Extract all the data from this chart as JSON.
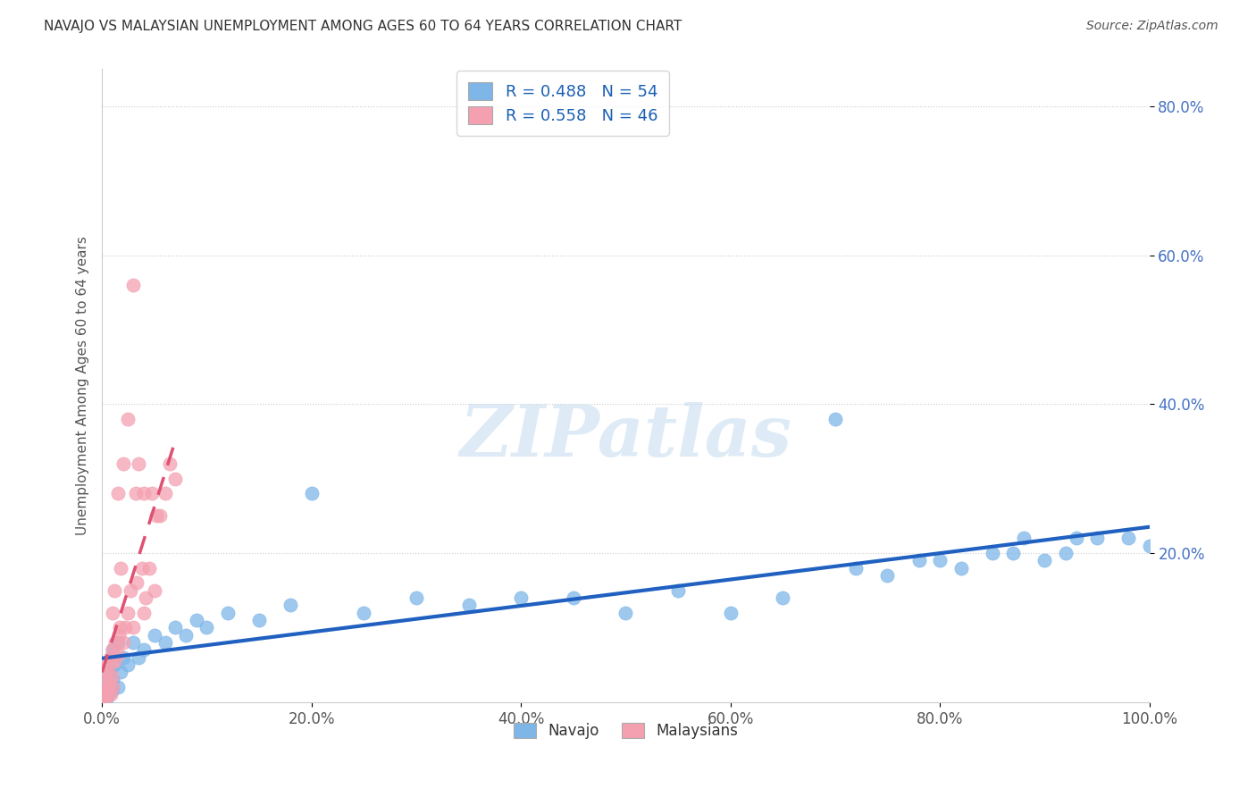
{
  "title": "NAVAJO VS MALAYSIAN UNEMPLOYMENT AMONG AGES 60 TO 64 YEARS CORRELATION CHART",
  "source": "Source: ZipAtlas.com",
  "ylabel": "Unemployment Among Ages 60 to 64 years",
  "xlim": [
    0.0,
    1.0
  ],
  "ylim": [
    0.0,
    0.85
  ],
  "xticks": [
    0.0,
    0.2,
    0.4,
    0.6,
    0.8,
    1.0
  ],
  "xtick_labels": [
    "0.0%",
    "20.0%",
    "40.0%",
    "60.0%",
    "80.0%",
    "100.0%"
  ],
  "yticks": [
    0.2,
    0.4,
    0.6,
    0.8
  ],
  "ytick_labels": [
    "20.0%",
    "40.0%",
    "60.0%",
    "80.0%"
  ],
  "navajo_R": 0.488,
  "navajo_N": 54,
  "malaysian_R": 0.558,
  "malaysian_N": 46,
  "navajo_color": "#7EB6E8",
  "malaysian_color": "#F4A0B0",
  "navajo_line_color": "#2060C0",
  "malaysian_line_color": "#E05070",
  "navajo_scatter_x": [
    0.002,
    0.003,
    0.004,
    0.005,
    0.006,
    0.007,
    0.008,
    0.008,
    0.009,
    0.01,
    0.01,
    0.012,
    0.015,
    0.015,
    0.018,
    0.02,
    0.025,
    0.03,
    0.035,
    0.04,
    0.05,
    0.06,
    0.07,
    0.08,
    0.09,
    0.1,
    0.12,
    0.15,
    0.18,
    0.2,
    0.25,
    0.3,
    0.35,
    0.4,
    0.45,
    0.5,
    0.55,
    0.6,
    0.65,
    0.7,
    0.72,
    0.75,
    0.78,
    0.8,
    0.82,
    0.85,
    0.87,
    0.88,
    0.9,
    0.92,
    0.93,
    0.95,
    0.98,
    1.0
  ],
  "navajo_scatter_y": [
    0.01,
    0.02,
    0.005,
    0.03,
    0.01,
    0.04,
    0.02,
    0.06,
    0.015,
    0.03,
    0.07,
    0.05,
    0.02,
    0.08,
    0.04,
    0.06,
    0.05,
    0.08,
    0.06,
    0.07,
    0.09,
    0.08,
    0.1,
    0.09,
    0.11,
    0.1,
    0.12,
    0.11,
    0.13,
    0.28,
    0.12,
    0.14,
    0.13,
    0.14,
    0.14,
    0.12,
    0.15,
    0.12,
    0.14,
    0.38,
    0.18,
    0.17,
    0.19,
    0.19,
    0.18,
    0.2,
    0.2,
    0.22,
    0.19,
    0.2,
    0.22,
    0.22,
    0.22,
    0.21
  ],
  "malaysian_scatter_x": [
    0.002,
    0.003,
    0.004,
    0.004,
    0.005,
    0.005,
    0.006,
    0.006,
    0.007,
    0.008,
    0.008,
    0.009,
    0.01,
    0.01,
    0.01,
    0.012,
    0.012,
    0.013,
    0.015,
    0.015,
    0.016,
    0.017,
    0.018,
    0.02,
    0.02,
    0.022,
    0.025,
    0.025,
    0.027,
    0.03,
    0.03,
    0.032,
    0.033,
    0.035,
    0.038,
    0.04,
    0.04,
    0.042,
    0.045,
    0.048,
    0.05,
    0.052,
    0.055,
    0.06,
    0.065,
    0.07
  ],
  "malaysian_scatter_y": [
    0.005,
    0.01,
    0.008,
    0.03,
    0.015,
    0.04,
    0.02,
    0.05,
    0.025,
    0.01,
    0.06,
    0.035,
    0.02,
    0.07,
    0.12,
    0.055,
    0.15,
    0.08,
    0.065,
    0.28,
    0.09,
    0.1,
    0.18,
    0.08,
    0.32,
    0.1,
    0.12,
    0.38,
    0.15,
    0.1,
    0.56,
    0.28,
    0.16,
    0.32,
    0.18,
    0.12,
    0.28,
    0.14,
    0.18,
    0.28,
    0.15,
    0.25,
    0.25,
    0.28,
    0.32,
    0.3
  ]
}
